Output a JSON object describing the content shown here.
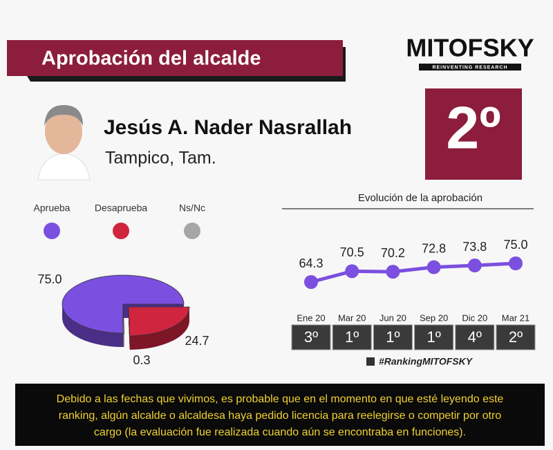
{
  "header": {
    "title": "Aprobación del alcalde"
  },
  "logo": {
    "name": "MITOFSKY",
    "tagline": "REINVENTING RESEARCH"
  },
  "candidate": {
    "name": "Jesús A. Nader Nasrallah",
    "city": "Tampico, Tam."
  },
  "rank": "2º",
  "chart_data": [
    {
      "type": "pie",
      "categories": [
        "Aprueba",
        "Desaprueba",
        "Ns/Nc"
      ],
      "values": [
        75.0,
        24.7,
        0.3
      ],
      "value_labels": [
        "75.0",
        "24.7",
        "0.3"
      ],
      "colors": [
        "#7b4fe0",
        "#d0253f",
        "#a6a6a6"
      ]
    },
    {
      "type": "line",
      "title": "Evolución de la aprobación",
      "categories": [
        "Ene 20",
        "Mar 20",
        "Jun 20",
        "Sep 20",
        "Dic 20",
        "Mar 21"
      ],
      "values": [
        64.3,
        70.5,
        70.2,
        72.8,
        73.8,
        75.0
      ],
      "value_labels": [
        "64.3",
        "70.5",
        "70.2",
        "72.8",
        "73.8",
        "75.0"
      ],
      "color": "#7b4fe0"
    }
  ],
  "rankings": [
    "3º",
    "1º",
    "1º",
    "1º",
    "4º",
    "2º"
  ],
  "hashtag": "#RankingMITOFSKY",
  "note": [
    "Debido a las fechas que vivimos, es probable que en el momento en que esté leyendo este",
    "ranking, algún alcalde o alcaldesa haya pedido licencia para reelegirse o competir por otro",
    "cargo (la evaluación fue realizada cuando aún se encontraba en funciones)."
  ]
}
